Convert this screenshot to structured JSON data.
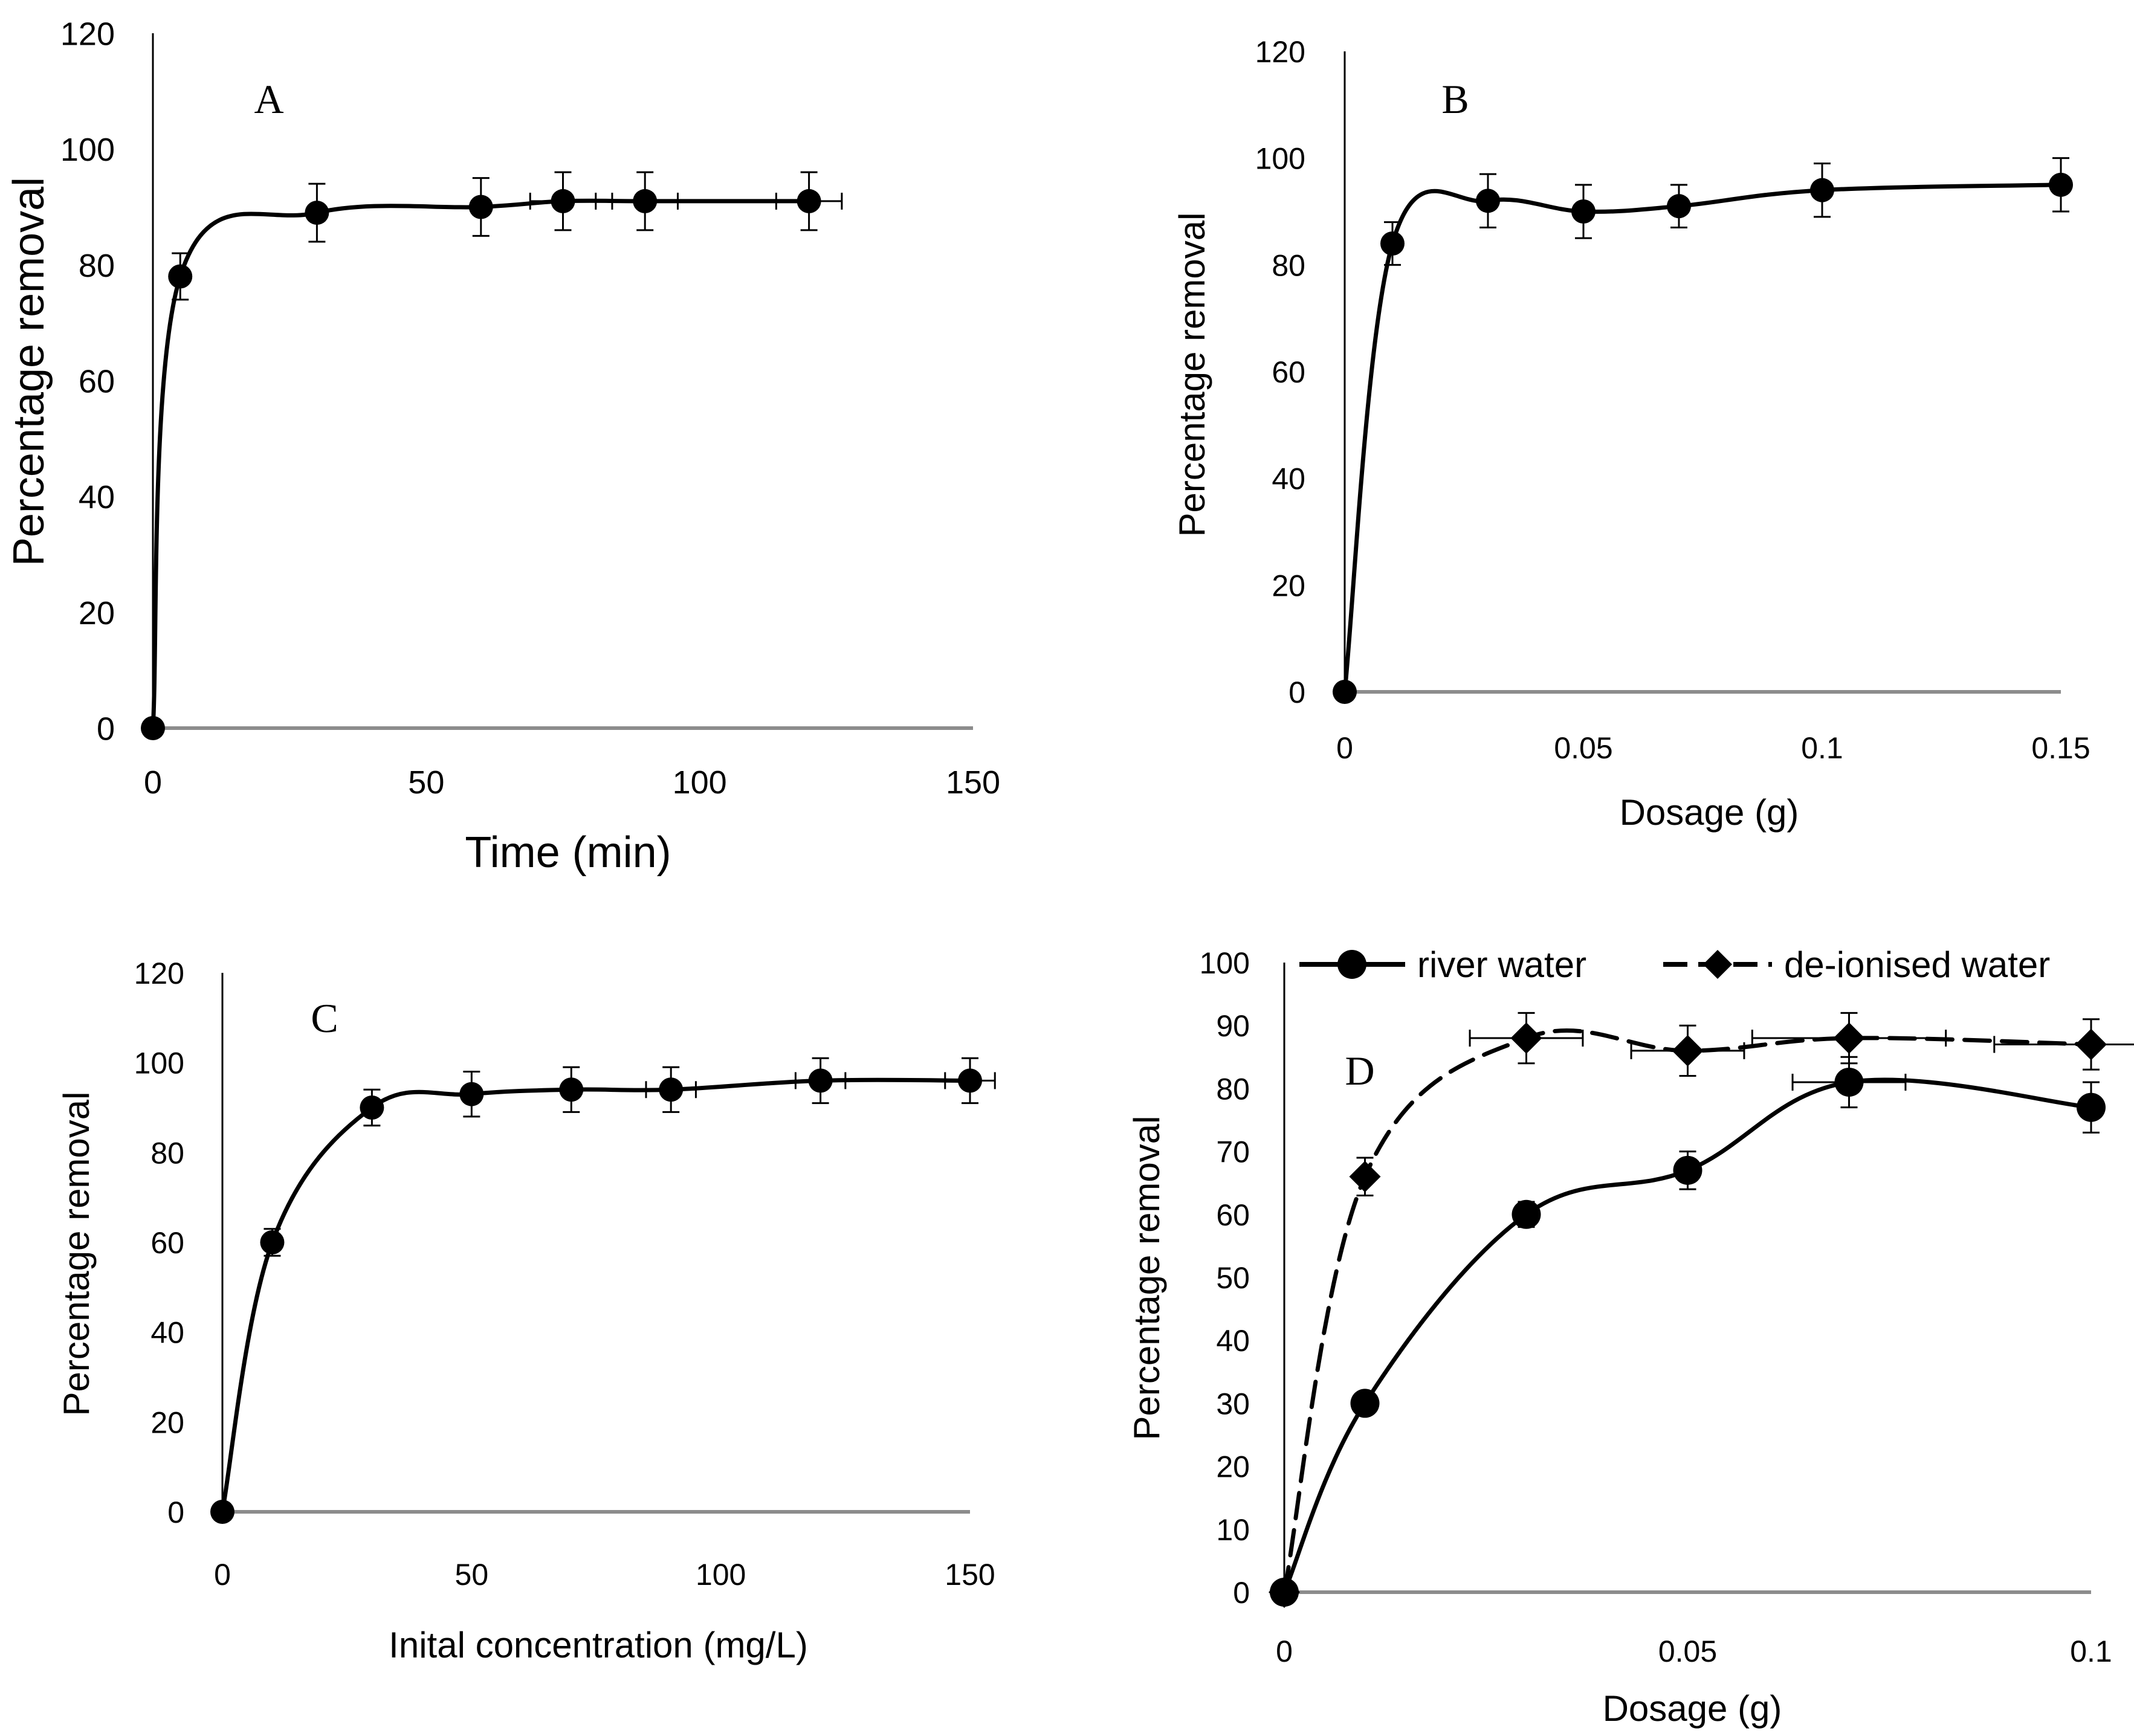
{
  "chart_data": [
    {
      "id": "A",
      "type": "line",
      "panel_label": "A",
      "xlabel": "Time (min)",
      "ylabel": "Percentage removal",
      "xlim": [
        0,
        150
      ],
      "ylim": [
        0,
        120
      ],
      "xticks": [
        "0",
        "50",
        "100",
        "150"
      ],
      "yticks": [
        "0",
        "20",
        "40",
        "60",
        "80",
        "100",
        "120"
      ],
      "grid": false,
      "series": [
        {
          "name": "removal",
          "marker": "circle",
          "dash": "solid",
          "x": [
            0,
            5,
            30,
            60,
            75,
            90,
            120
          ],
          "y": [
            0,
            78,
            89,
            90,
            91,
            91,
            91
          ],
          "err": [
            0,
            4,
            5,
            5,
            5,
            5,
            5
          ],
          "xerr": [
            0,
            0,
            0,
            0,
            6,
            6,
            6
          ]
        }
      ]
    },
    {
      "id": "B",
      "type": "line",
      "panel_label": "B",
      "xlabel": "Dosage (g)",
      "ylabel": "Percentage removal",
      "xlim": [
        0,
        0.15
      ],
      "ylim": [
        0,
        120
      ],
      "xticks": [
        "0",
        "0.05",
        "0.1",
        "0.15"
      ],
      "yticks": [
        "0",
        "20",
        "40",
        "60",
        "80",
        "100",
        "120"
      ],
      "grid": false,
      "series": [
        {
          "name": "removal",
          "marker": "circle",
          "dash": "solid",
          "x": [
            0,
            0.01,
            0.03,
            0.05,
            0.07,
            0.1,
            0.15
          ],
          "y": [
            0,
            84,
            92,
            90,
            91,
            94,
            95
          ],
          "err": [
            0,
            4,
            5,
            5,
            4,
            5,
            5
          ],
          "xerr": [
            0,
            0,
            0,
            0,
            0,
            0,
            0
          ]
        }
      ]
    },
    {
      "id": "C",
      "type": "line",
      "panel_label": "C",
      "xlabel": "Inital concentration (mg/L)",
      "ylabel": "Percentage removal",
      "xlim": [
        0,
        150
      ],
      "ylim": [
        0,
        120
      ],
      "xticks": [
        "0",
        "50",
        "100",
        "150"
      ],
      "yticks": [
        "0",
        "20",
        "40",
        "60",
        "80",
        "100",
        "120"
      ],
      "grid": false,
      "series": [
        {
          "name": "removal",
          "marker": "circle",
          "dash": "solid",
          "x": [
            0,
            10,
            30,
            50,
            70,
            90,
            120,
            150
          ],
          "y": [
            0,
            60,
            90,
            93,
            94,
            94,
            96,
            96
          ],
          "err": [
            0,
            3,
            4,
            5,
            5,
            5,
            5,
            5
          ],
          "xerr": [
            0,
            0,
            0,
            0,
            0,
            5,
            5,
            5
          ]
        }
      ]
    },
    {
      "id": "D",
      "type": "line",
      "panel_label": "D",
      "xlabel": "Dosage (g)",
      "ylabel": "Percentage removal",
      "xlim": [
        0,
        0.1
      ],
      "ylim": [
        0,
        100
      ],
      "xticks": [
        "0",
        "0.05",
        "0.1"
      ],
      "yticks": [
        "0",
        "10",
        "20",
        "30",
        "40",
        "50",
        "60",
        "70",
        "80",
        "90",
        "100"
      ],
      "grid": false,
      "legend": "top",
      "series": [
        {
          "name": "river water",
          "marker": "circle",
          "dash": "solid",
          "x": [
            0,
            0.01,
            0.03,
            0.05,
            0.07,
            0.1
          ],
          "y": [
            0,
            30,
            60,
            67,
            81,
            77
          ],
          "err": [
            0,
            1,
            2,
            3,
            4,
            4
          ],
          "xerr": [
            0,
            0,
            0,
            0,
            0.007,
            0
          ]
        },
        {
          "name": "de-ionised water",
          "marker": "diamond",
          "dash": "dashed",
          "x": [
            0,
            0.01,
            0.03,
            0.05,
            0.07,
            0.1
          ],
          "y": [
            0,
            66,
            88,
            86,
            88,
            87
          ],
          "err": [
            0,
            3,
            4,
            4,
            4,
            4
          ],
          "xerr": [
            0,
            0,
            0.007,
            0.007,
            0.012,
            0.012
          ]
        }
      ]
    }
  ]
}
